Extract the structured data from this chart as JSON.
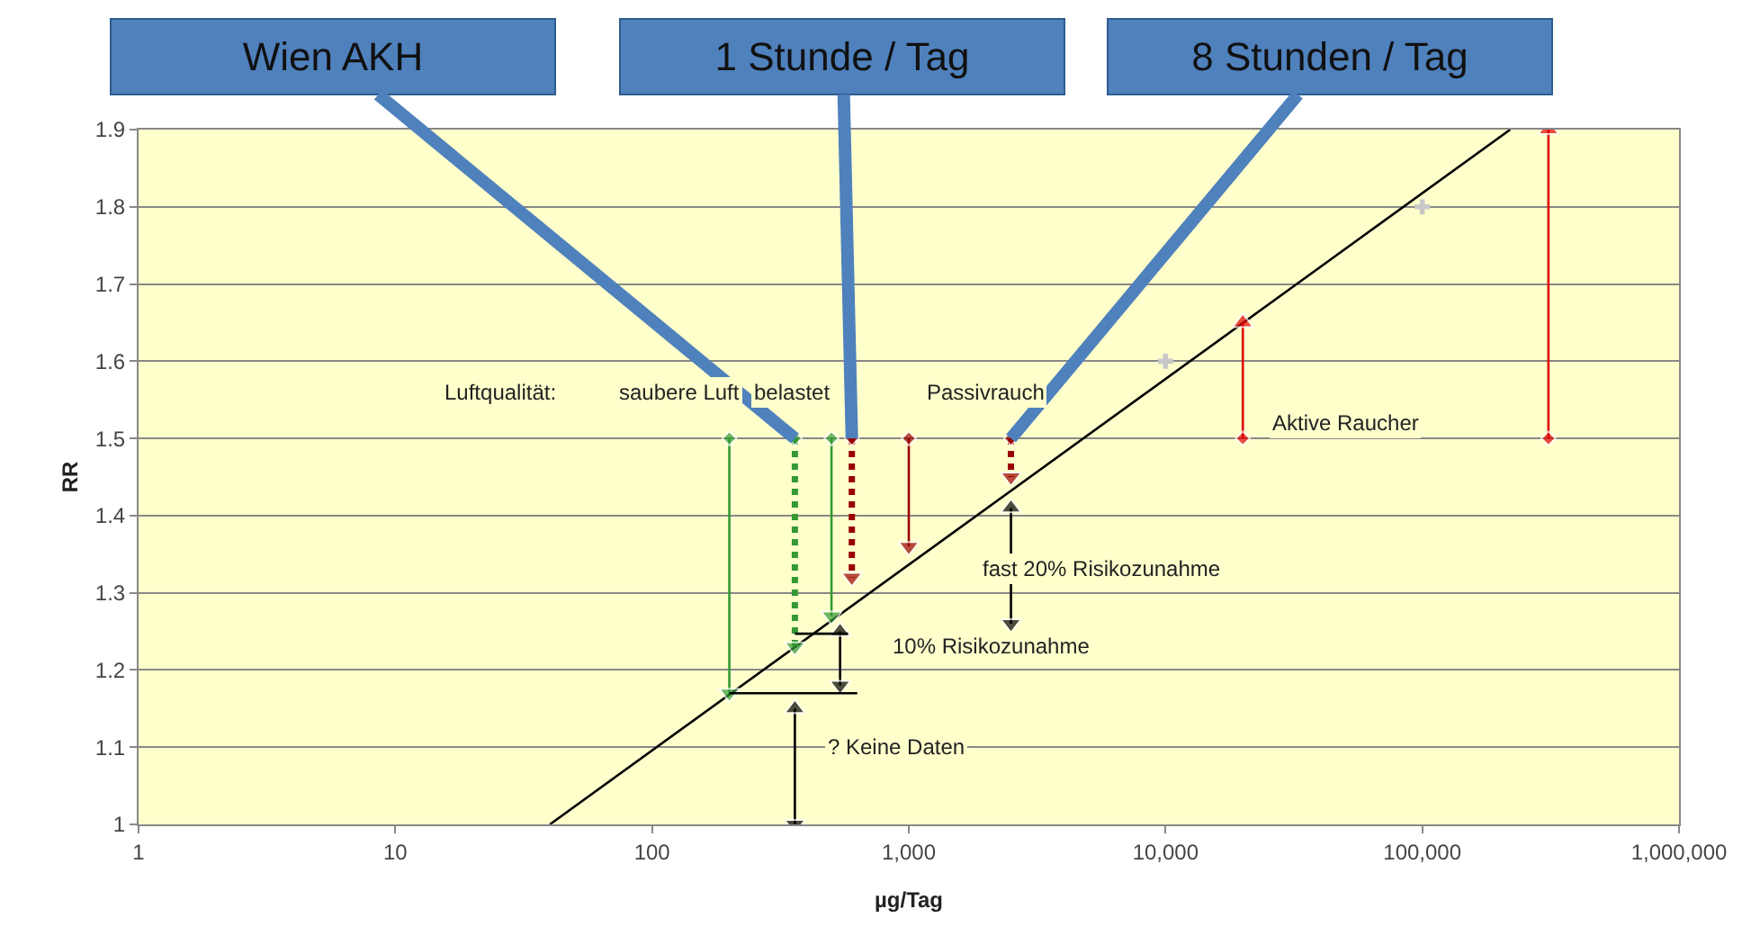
{
  "chart_data": {
    "type": "line",
    "xlabel": "µg/Tag",
    "ylabel": "RR",
    "log": "x",
    "grid": "y",
    "xlim": [
      1,
      1000000
    ],
    "xticks": [
      1,
      10,
      100,
      {
        "value": 1000,
        "label": "1,000"
      },
      {
        "value": 10000,
        "label": "10,000"
      },
      {
        "value": 100000,
        "label": "100,000"
      },
      {
        "value": 1000000,
        "label": "1,000,000"
      }
    ],
    "ylim": [
      1,
      1.9
    ],
    "yticks": [
      1,
      1.1,
      1.2,
      1.3,
      1.4,
      1.5,
      1.6,
      1.7,
      1.8,
      1.9
    ],
    "series": [
      {
        "color": "#000000",
        "x": [
          40,
          220000
        ],
        "values": [
          1,
          1.9
        ],
        "marker": "none",
        "line_style": "solid"
      },
      {
        "type": "scatter",
        "color": "#c8c8c8",
        "x": [
          10000,
          100000
        ],
        "values": [
          1.6,
          1.8
        ],
        "marker": "cross"
      },
      {
        "type": "line",
        "color": "#339933",
        "x": [
          200,
          200
        ],
        "values": [
          1.5,
          1.17
        ],
        "marker": "diamond",
        "line_style": "solid"
      },
      {
        "type": "line",
        "color": "#339933",
        "x": [
          360,
          360
        ],
        "values": [
          1.5,
          1.23
        ],
        "marker": "diamond",
        "line_style": "dotted"
      },
      {
        "type": "line",
        "color": "#339933",
        "x": [
          500,
          500
        ],
        "values": [
          1.5,
          1.27
        ],
        "marker": "diamond",
        "line_style": "solid"
      },
      {
        "type": "line",
        "color": "#990000",
        "x": [
          600,
          600
        ],
        "values": [
          1.5,
          1.32
        ],
        "marker": "diamond",
        "line_style": "dotted"
      },
      {
        "type": "line",
        "color": "#990000",
        "x": [
          1000,
          1000
        ],
        "values": [
          1.5,
          1.36
        ],
        "marker": "diamond",
        "line_style": "solid"
      },
      {
        "type": "line",
        "color": "#990000",
        "x": [
          2500,
          2500
        ],
        "values": [
          1.5,
          1.45
        ],
        "marker": "diamond",
        "line_style": "dotted"
      },
      {
        "type": "line",
        "color": "#e00000",
        "x": [
          20000,
          20000
        ],
        "values": [
          1.5,
          1.65
        ],
        "marker": "diamond",
        "line_style": "solid"
      },
      {
        "type": "line",
        "color": "#e00000",
        "x": [
          310000,
          310000
        ],
        "values": [
          1.5,
          1.9
        ],
        "marker": "diamond",
        "line_style": "solid"
      },
      {
        "type": "line",
        "color": "#000000",
        "x": [
          2500,
          2500
        ],
        "values": [
          1.41,
          1.26
        ],
        "marker": "triangle",
        "line_style": "solid"
      },
      {
        "type": "line",
        "color": "#000000",
        "x": [
          540,
          540
        ],
        "values": [
          1.25,
          1.18
        ],
        "marker": "triangle",
        "line_style": "solid"
      },
      {
        "type": "line",
        "color": "#000000",
        "x": [
          360,
          360
        ],
        "values": [
          1.15,
          1
        ],
        "marker": "triangle",
        "line_style": "solid"
      },
      {
        "type": "line",
        "color": "#000000",
        "x": [
          200,
          630
        ],
        "values": [
          1.17,
          1.17
        ],
        "marker": "none",
        "line_style": "solid"
      },
      {
        "type": "line",
        "color": "#000000",
        "x": [
          360,
          580
        ],
        "values": [
          1.247,
          1.247
        ],
        "marker": "none",
        "line_style": "solid"
      }
    ],
    "annotations": [
      {
        "text": "Wien AKH",
        "x": 360,
        "y": 1.5
      },
      {
        "text": "1 Stunde / Tag",
        "x": 600,
        "y": 1.5
      },
      {
        "text": "8 Stunden / Tag",
        "x": 2500,
        "y": 1.5
      },
      "Luftqualität:",
      "saubere Luft",
      "belastet",
      "Passivrauch",
      "Aktive Raucher",
      "fast 20% Risikozunahme",
      "10% Risikozunahme",
      "? Keine Daten"
    ]
  }
}
